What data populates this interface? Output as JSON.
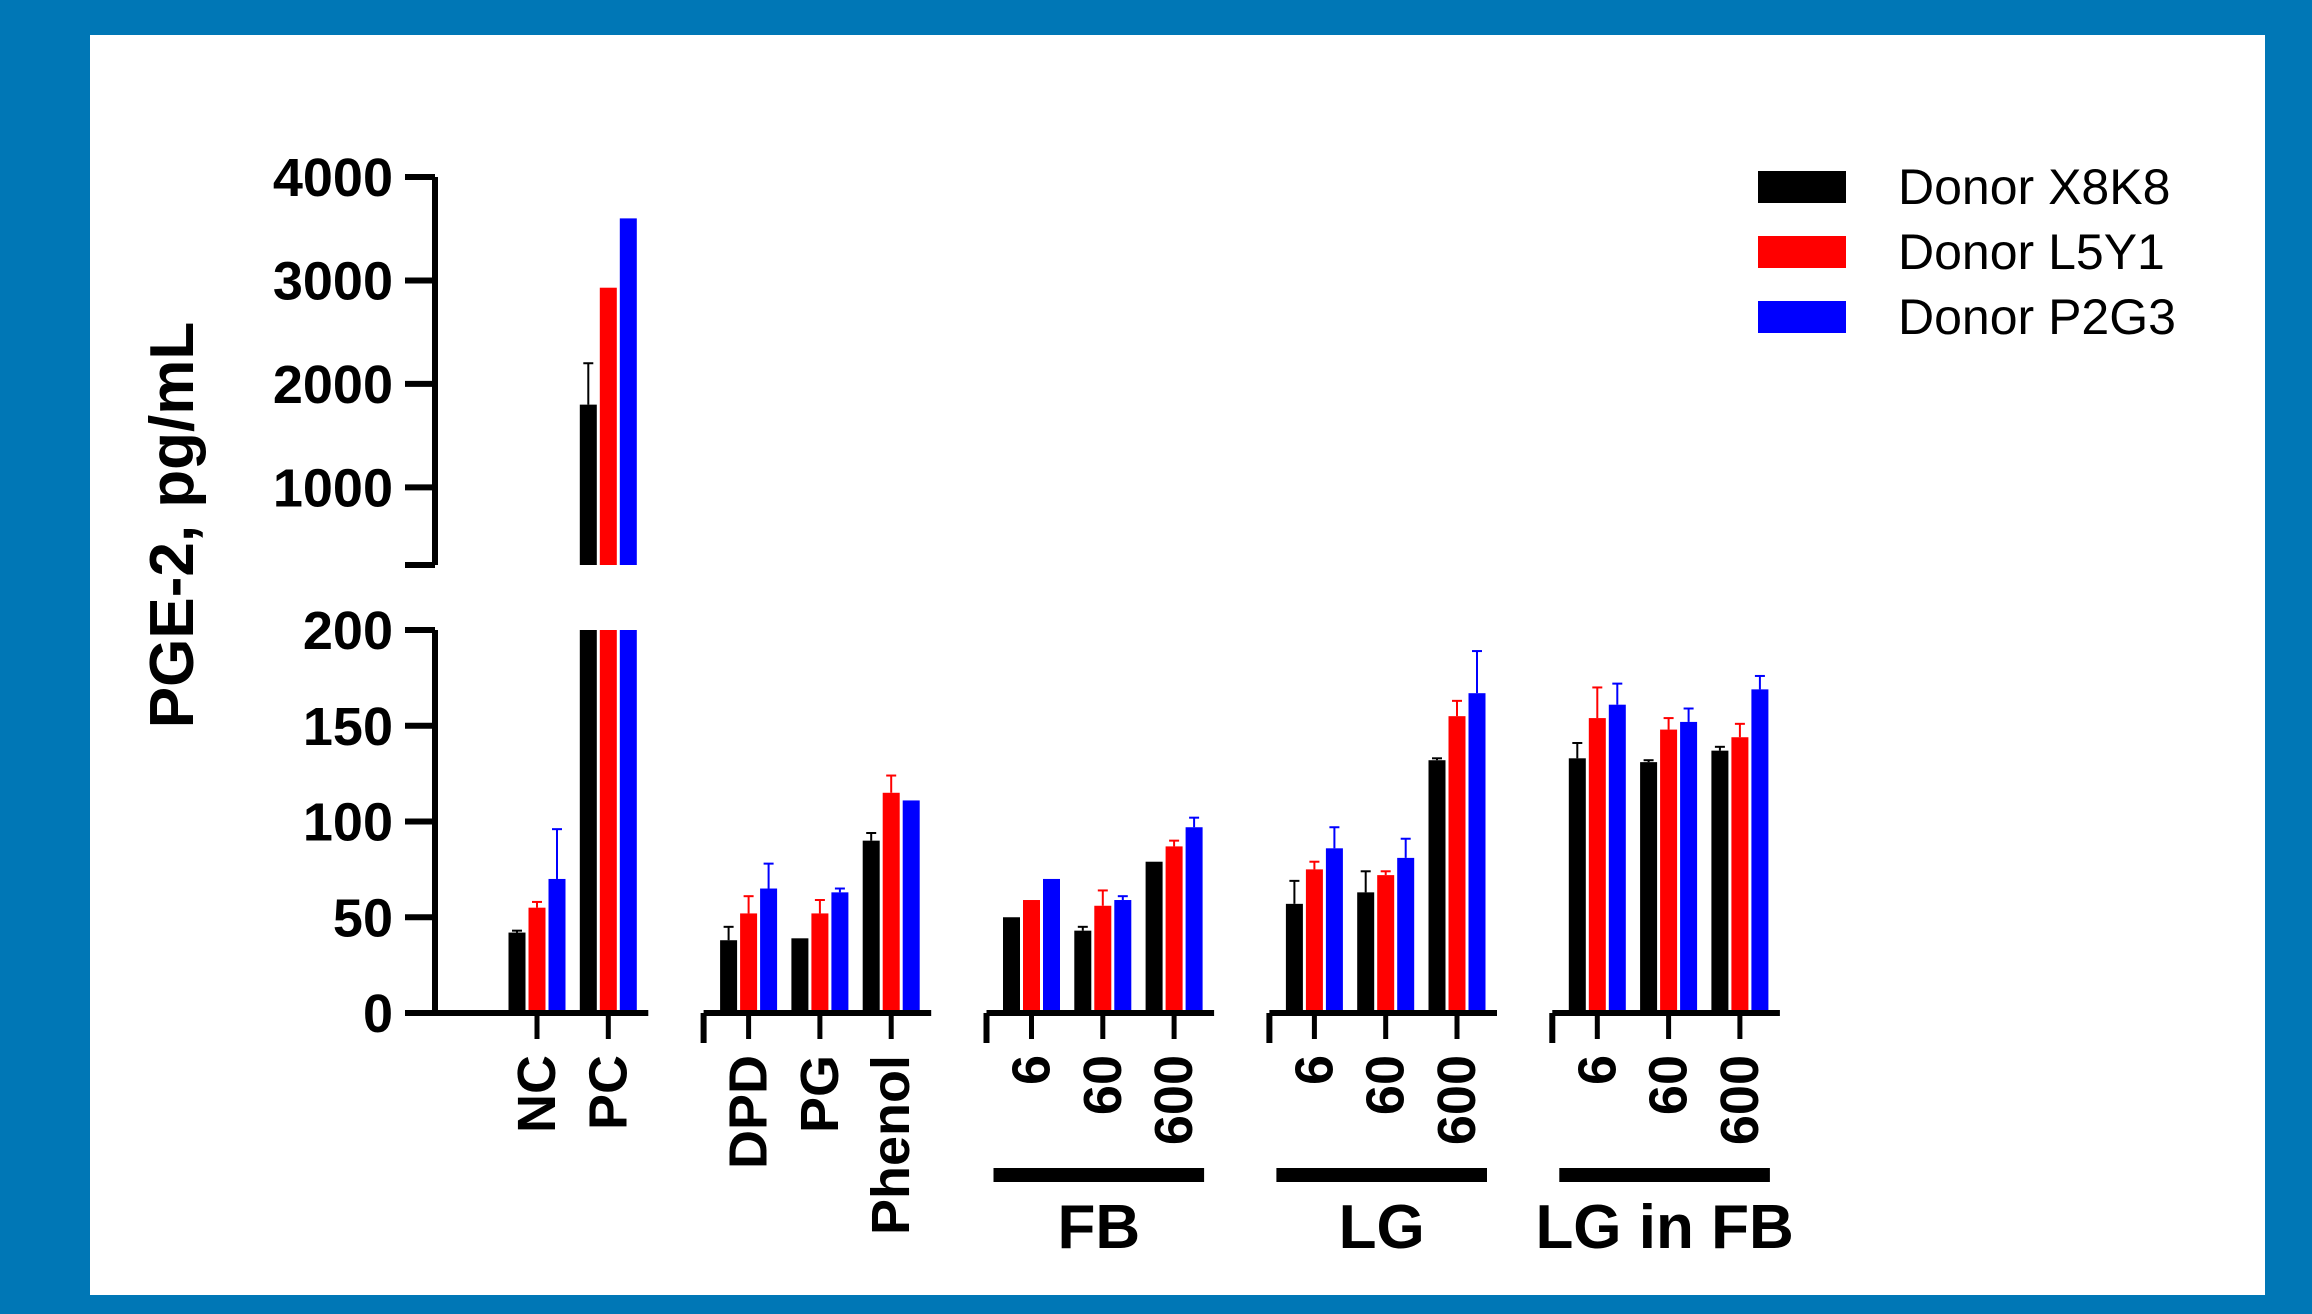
{
  "colors": {
    "frame": "#0077b6",
    "panel": "#ffffff"
  },
  "chart_data": {
    "type": "bar",
    "title": "",
    "ylabel": "PGE-2, pg/mL",
    "xlabel": "",
    "y_axis": {
      "broken": true,
      "lower_range": [
        0,
        200
      ],
      "upper_range": [
        250,
        4000
      ],
      "lower_ticks": [
        "0",
        "50",
        "100",
        "150",
        "200"
      ],
      "upper_ticks": [
        "1000",
        "2000",
        "3000",
        "4000"
      ]
    },
    "categories": [
      "NC",
      "PC",
      "DPD",
      "PG",
      "Phenol",
      "6",
      "60",
      "600",
      "6",
      "60",
      "600",
      "6",
      "60",
      "600"
    ],
    "category_groups": [
      {
        "start": 0,
        "end": 1,
        "label": ""
      },
      {
        "start": 2,
        "end": 4,
        "label": ""
      },
      {
        "start": 5,
        "end": 7,
        "label": "FB"
      },
      {
        "start": 8,
        "end": 10,
        "label": "LG"
      },
      {
        "start": 11,
        "end": 13,
        "label": "LG in FB"
      }
    ],
    "series": [
      {
        "name": "Donor X8K8",
        "color": "#000000",
        "values": [
          42,
          1800,
          38,
          39,
          90,
          50,
          43,
          79,
          57,
          63,
          132,
          133,
          131,
          137
        ],
        "errors": [
          1,
          400,
          7,
          0,
          4,
          0,
          2,
          0,
          12,
          11,
          1,
          8,
          1,
          2
        ]
      },
      {
        "name": "Donor L5Y1",
        "color": "#ff0000",
        "values": [
          55,
          2930,
          52,
          52,
          115,
          59,
          56,
          87,
          75,
          72,
          155,
          154,
          148,
          144
        ],
        "errors": [
          3,
          0,
          9,
          7,
          9,
          0,
          8,
          3,
          4,
          2,
          8,
          16,
          6,
          7
        ]
      },
      {
        "name": "Donor P2G3",
        "color": "#0000ff",
        "values": [
          70,
          3600,
          65,
          63,
          111,
          70,
          59,
          97,
          86,
          81,
          167,
          161,
          152,
          169
        ],
        "errors": [
          26,
          0,
          13,
          2,
          0,
          0,
          2,
          5,
          11,
          10,
          22,
          11,
          7,
          7
        ]
      }
    ],
    "legend_position": "top-right",
    "grid": false
  }
}
